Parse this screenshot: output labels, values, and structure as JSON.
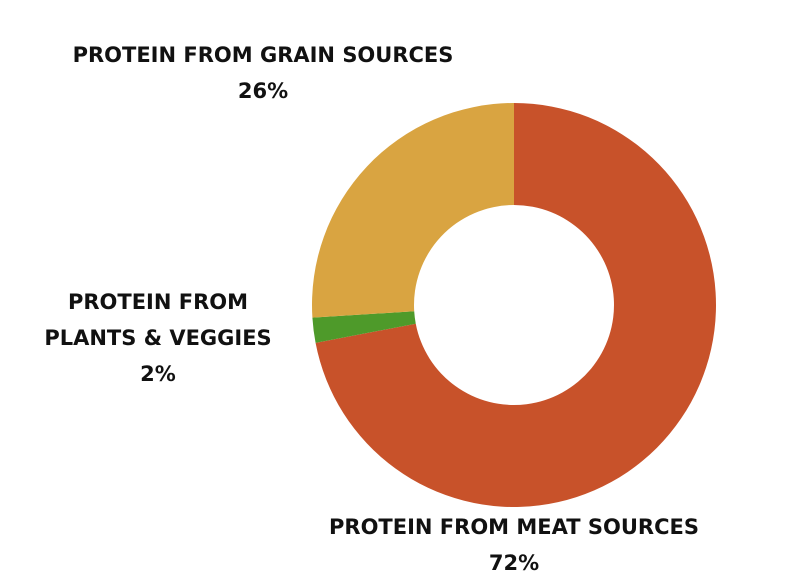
{
  "chart_data": {
    "type": "donut",
    "categories": [
      "PROTEIN FROM MEAT SOURCES",
      "PROTEIN FROM PLANTS & VEGGIES",
      "PROTEIN FROM GRAIN SOURCES"
    ],
    "values": [
      72,
      2,
      26
    ],
    "value_labels": [
      "72%",
      "2%",
      "26%"
    ],
    "colors": [
      "#c8522a",
      "#4e9a2a",
      "#d9a441"
    ]
  }
}
